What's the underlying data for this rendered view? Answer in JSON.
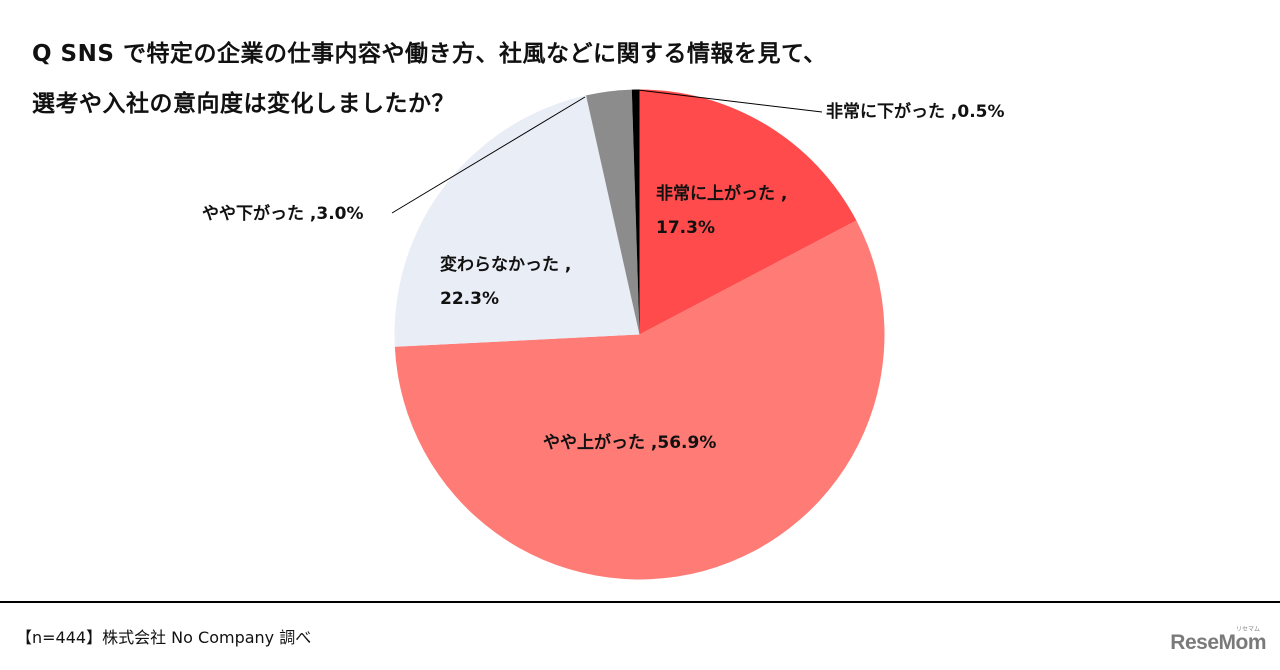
{
  "title": {
    "line1": "Q SNS で特定の企業の仕事内容や働き方、社風などに関する情報を見て、",
    "line2": "選考や入社の意向度は変化しましたか？"
  },
  "labels": {
    "very_up_line1": "非常に上がった ,",
    "very_up_line2": "17.3%",
    "somewhat_up": "やや上がった ,56.9%",
    "no_change_line1": "変わらなかった ,",
    "no_change_line2": "22.3%",
    "somewhat_down": "やや下がった ,3.0%",
    "very_down": "非常に下がった ,0.5%"
  },
  "footer": {
    "note": "【n=444】株式会社 No Company 調べ",
    "logo": "ReseMom",
    "logo_kana": "リセマム"
  },
  "colors": {
    "very_up": "#FF4B4B",
    "somewhat_up": "#FF7B76",
    "no_change": "#E9EDF6",
    "somewhat_down": "#8C8C8C",
    "very_down": "#000000"
  },
  "chart_data": {
    "type": "pie",
    "title": "Q SNS で特定の企業の仕事内容や働き方、社風などに関する情報を見て、選考や入社の意向度は変化しましたか？",
    "categories": [
      "非常に上がった",
      "やや上がった",
      "変わらなかった",
      "やや下がった",
      "非常に下がった"
    ],
    "values": [
      17.3,
      56.9,
      22.3,
      3.0,
      0.5
    ],
    "unit": "%",
    "start_angle": "12 o'clock",
    "direction": "clockwise",
    "colors": [
      "#FF4B4B",
      "#FF7B76",
      "#E9EDF6",
      "#8C8C8C",
      "#000000"
    ],
    "n": 444,
    "source": "株式会社 No Company 調べ",
    "legend": "none (data labels)"
  }
}
